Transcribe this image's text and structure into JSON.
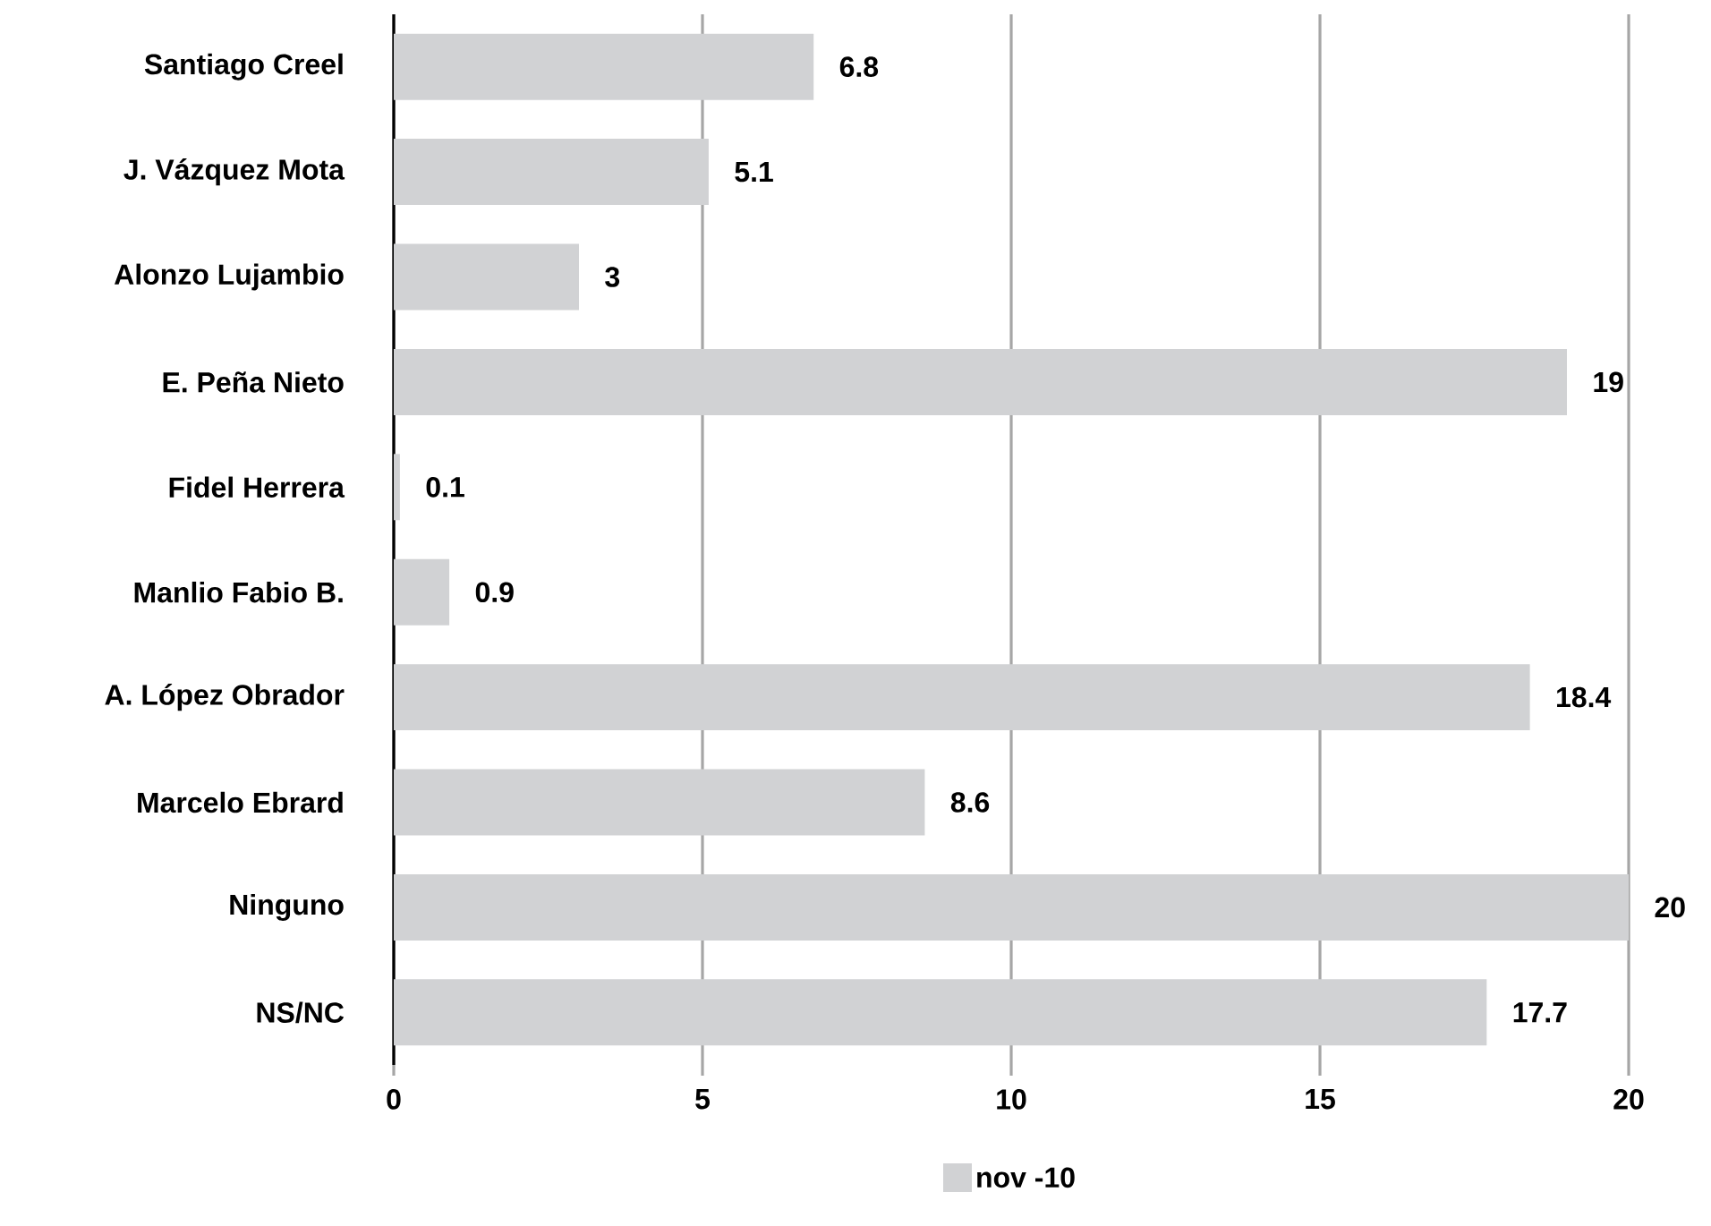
{
  "chart_data": {
    "type": "bar",
    "orientation": "horizontal",
    "categories": [
      "Santiago Creel",
      "J. Vázquez Mota",
      "Alonzo Lujambio",
      "E. Peña Nieto",
      "Fidel Herrera",
      "Manlio Fabio B.",
      "A. López Obrador",
      "Marcelo Ebrard",
      "Ninguno",
      "NS/NC"
    ],
    "series": [
      {
        "name": "nov -10",
        "color": "#d1d2d4",
        "values": [
          6.8,
          5.1,
          3,
          19,
          0.1,
          0.9,
          18.4,
          8.6,
          20,
          17.7
        ]
      }
    ],
    "xlim": [
      0,
      20
    ],
    "xticks": [
      0,
      5,
      10,
      15,
      20
    ],
    "grid": "x",
    "legend": "bottom",
    "data_labels": true
  }
}
